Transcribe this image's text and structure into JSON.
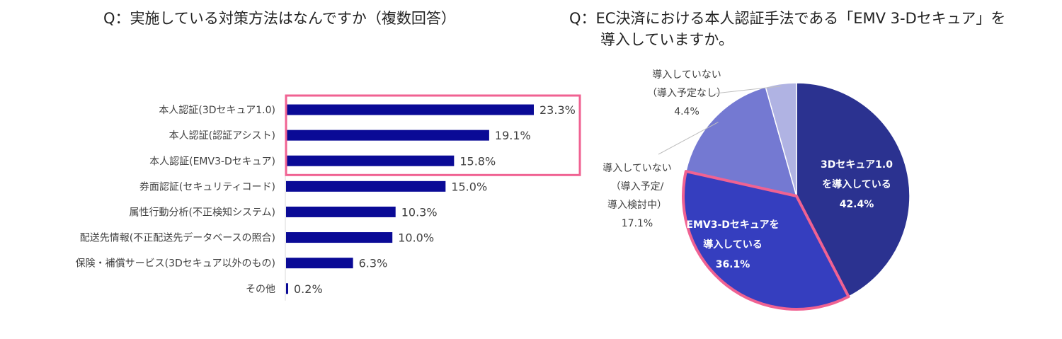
{
  "chart_data": [
    {
      "type": "bar",
      "title": "Q：実施している対策方法はなんですか（複数回答）",
      "categories": [
        "本人認証(3Dセキュア1.0)",
        "本人認証(認証アシスト)",
        "本人認証(EMV3-Dセキュア)",
        "券面認証(セキュリティコード)",
        "属性行動分析(不正検知システム)",
        "配送先情報(不正配送先データベースの照合)",
        "保険・補償サービス(3Dセキュア以外のもの)",
        "その他"
      ],
      "values": [
        23.3,
        19.1,
        15.8,
        15.0,
        10.3,
        10.0,
        6.3,
        0.2
      ],
      "value_labels": [
        "23.3%",
        "19.1%",
        "15.8%",
        "15.0%",
        "10.3%",
        "10.0%",
        "6.3%",
        "0.2%"
      ],
      "xlim": [
        0,
        25
      ],
      "orientation": "horizontal",
      "highlighted_categories": [
        0,
        1,
        2
      ],
      "colors": {
        "bar": "#0a0a96",
        "highlight": "#f06292"
      }
    },
    {
      "type": "pie",
      "title_line1": "Q：EC決済における本人認証手法である「EMV 3-Dセキュア」を",
      "title_line2": "導入していますか。",
      "slices": [
        {
          "label_lines": [
            "3Dセキュア1.0",
            "を導入している",
            "42.4%"
          ],
          "value": 42.4,
          "color": "#2b3290"
        },
        {
          "label_lines": [
            "EMV3-Dセキュアを",
            "導入している",
            "36.1%"
          ],
          "value": 36.1,
          "color": "#353ebf",
          "highlighted": true
        },
        {
          "label_lines": [
            "導入していない",
            "（導入予定/",
            "導入検討中）",
            "17.1%"
          ],
          "value": 17.1,
          "color": "#7479d2"
        },
        {
          "label_lines": [
            "導入していない",
            "（導入予定なし）",
            "4.4%"
          ],
          "value": 4.4,
          "color": "#b0b3e3"
        }
      ],
      "start_angle": "12 o'clock",
      "direction": "clockwise",
      "colors": {
        "highlight": "#f06292"
      }
    }
  ]
}
